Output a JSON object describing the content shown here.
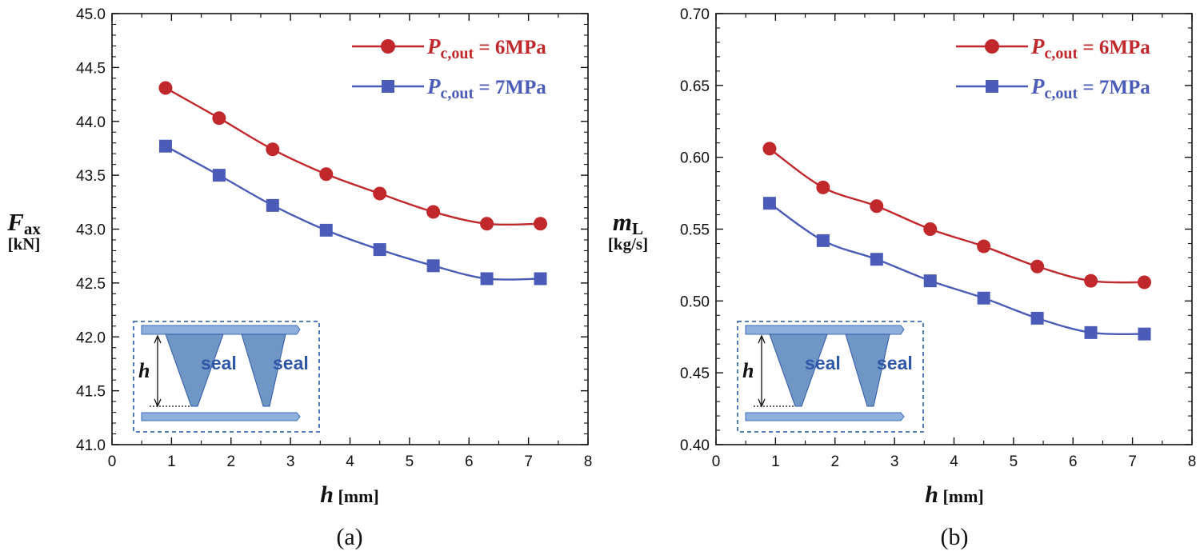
{
  "colors": {
    "series1": "#c0282c",
    "series2": "#4a5cb8",
    "inset_fill": "#7096c6",
    "inset_plate": "#8fb0dc",
    "inset_border": "#3d6db5"
  },
  "chart_data": [
    {
      "type": "line",
      "panel_label": "(a)",
      "ylabel_main": "F",
      "ylabel_sub": "ax",
      "ylabel_unit": "[kN]",
      "xlabel_main": "h",
      "xlabel_unit": "[mm]",
      "xlim": [
        0,
        8
      ],
      "ylim": [
        41.0,
        45.0
      ],
      "xticks": [
        "0",
        "1",
        "2",
        "3",
        "4",
        "5",
        "6",
        "7",
        "8"
      ],
      "yticks": [
        "41.0",
        "41.5",
        "42.0",
        "42.5",
        "43.0",
        "43.5",
        "44.0",
        "44.5",
        "45.0"
      ],
      "x": [
        0.9,
        1.8,
        2.7,
        3.6,
        4.5,
        5.4,
        6.3,
        7.2
      ],
      "series": [
        {
          "name_main": "P",
          "name_sub": "c,out",
          "name_rest": " = 6MPa",
          "marker": "circle",
          "values": [
            44.31,
            44.03,
            43.74,
            43.51,
            43.33,
            43.16,
            43.05,
            43.05
          ]
        },
        {
          "name_main": "P",
          "name_sub": "c,out",
          "name_rest": " = 7MPa",
          "marker": "square",
          "values": [
            43.77,
            43.5,
            43.22,
            42.99,
            42.81,
            42.66,
            42.54,
            42.54
          ]
        }
      ],
      "inset": {
        "h_label": "h",
        "seal_label_1": "seal",
        "seal_label_2": "seal"
      }
    },
    {
      "type": "line",
      "panel_label": "(b)",
      "ylabel_main": "m",
      "ylabel_sub": "L",
      "ylabel_unit": "[kg/s]",
      "xlabel_main": "h",
      "xlabel_unit": "[mm]",
      "xlim": [
        0,
        8
      ],
      "ylim": [
        0.4,
        0.7
      ],
      "xticks": [
        "0",
        "1",
        "2",
        "3",
        "4",
        "5",
        "6",
        "7",
        "8"
      ],
      "yticks": [
        "0.40",
        "0.45",
        "0.50",
        "0.55",
        "0.60",
        "0.65",
        "0.70"
      ],
      "x": [
        0.9,
        1.8,
        2.7,
        3.6,
        4.5,
        5.4,
        6.3,
        7.2
      ],
      "series": [
        {
          "name_main": "P",
          "name_sub": "c,out",
          "name_rest": " = 6MPa",
          "marker": "circle",
          "values": [
            0.606,
            0.579,
            0.566,
            0.55,
            0.538,
            0.524,
            0.514,
            0.513
          ]
        },
        {
          "name_main": "P",
          "name_sub": "c,out",
          "name_rest": " = 7MPa",
          "marker": "square",
          "values": [
            0.568,
            0.542,
            0.529,
            0.514,
            0.502,
            0.488,
            0.478,
            0.477
          ]
        }
      ],
      "inset": {
        "h_label": "h",
        "seal_label_1": "seal",
        "seal_label_2": "seal"
      }
    }
  ]
}
